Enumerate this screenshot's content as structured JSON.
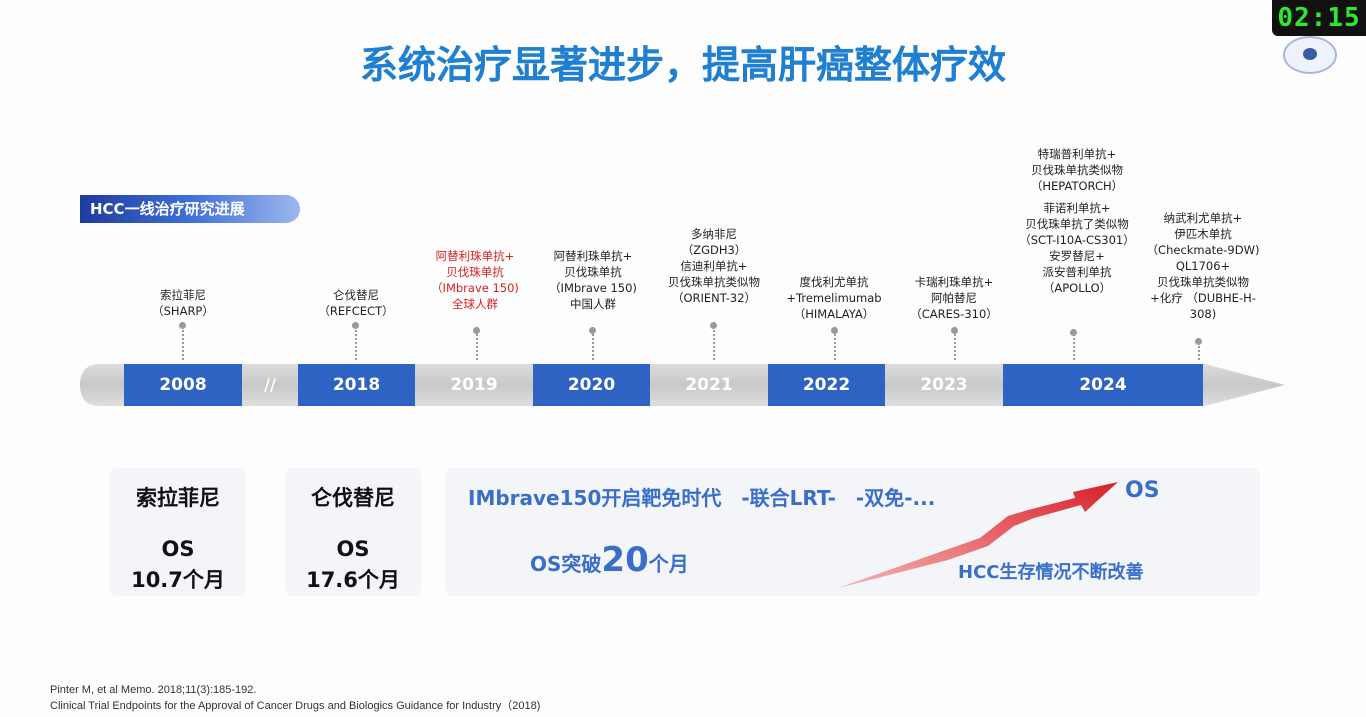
{
  "title": "系统治疗显著进步，提高肝癌整体疗效",
  "clock": "02:15",
  "section_tag": "HCC一线治疗研究进展",
  "timeline": {
    "years": [
      {
        "label": "2008",
        "active": true
      },
      {
        "label": "2018",
        "active": true
      },
      {
        "label": "2019",
        "active": false
      },
      {
        "label": "2020",
        "active": true
      },
      {
        "label": "2021",
        "active": false
      },
      {
        "label": "2022",
        "active": true
      },
      {
        "label": "2023",
        "active": false
      },
      {
        "label": "2024",
        "active": true
      }
    ],
    "separator": "//"
  },
  "drugs": [
    {
      "lines": [
        "索拉菲尼",
        "（SHARP）"
      ]
    },
    {
      "lines": [
        "仑伐替尼",
        "（REFCECT）"
      ]
    },
    {
      "lines": [
        "阿替利珠单抗+",
        "贝伐珠单抗",
        "（IMbrave 150)",
        "全球人群"
      ]
    },
    {
      "lines": [
        "阿替利珠单抗+",
        "贝伐珠单抗",
        "（IMbrave 150)",
        "中国人群"
      ]
    },
    {
      "lines": [
        "多纳非尼",
        "（ZGDH3）",
        "信迪利单抗+",
        "贝伐珠单抗类似物",
        "（ORIENT-32）"
      ]
    },
    {
      "lines": [
        "度伐利尤单抗",
        "+Tremelimumab",
        "（HIMALAYA）"
      ]
    },
    {
      "lines": [
        "卡瑞利珠单抗+",
        "阿帕替尼",
        "（CARES-310）"
      ]
    },
    {
      "lines": [
        "特瑞普利单抗+",
        "贝伐珠单抗类似物",
        "（HEPATORCH）",
        "",
        "菲诺利单抗+",
        "贝伐珠单抗了类似物",
        "（SCT-I10A-CS301）",
        "安罗替尼+",
        "派安普利单抗",
        "（APOLLO）"
      ]
    },
    {
      "lines": [
        "纳武利尤单抗+",
        "伊匹木单抗",
        "（Checkmate-9DW)",
        "QL1706+",
        "贝伐珠单抗类似物",
        "+化疗 （DUBHE-H-",
        "308)"
      ]
    }
  ],
  "bottom": {
    "sorafenib": {
      "name": "索拉菲尼",
      "os_label": "OS",
      "os_value": "10.7个月"
    },
    "lenvatinib": {
      "name": "仑伐替尼",
      "os_label": "OS",
      "os_value": "17.6个月"
    },
    "era_text": "IMbrave150开启靶免时代　-联合LRT-　-双免-...",
    "os_break_prefix": "OS突破",
    "os_break_number": "20",
    "os_break_suffix": "个月",
    "arrow_label": "OS",
    "trend_text": "HCC生存情况不断改善"
  },
  "references": [
    "Pinter M, et al Memo. 2018;11(3):185-192.",
    "Clinical Trial Endpoints for the Approval of Cancer Drugs and Biologics Guidance for Industry（2018)"
  ],
  "colors": {
    "accent_blue": "#2f63c3",
    "title_blue": "#1f7fd0",
    "red": "#d71f1f",
    "arrow_red": "#d8202a"
  }
}
